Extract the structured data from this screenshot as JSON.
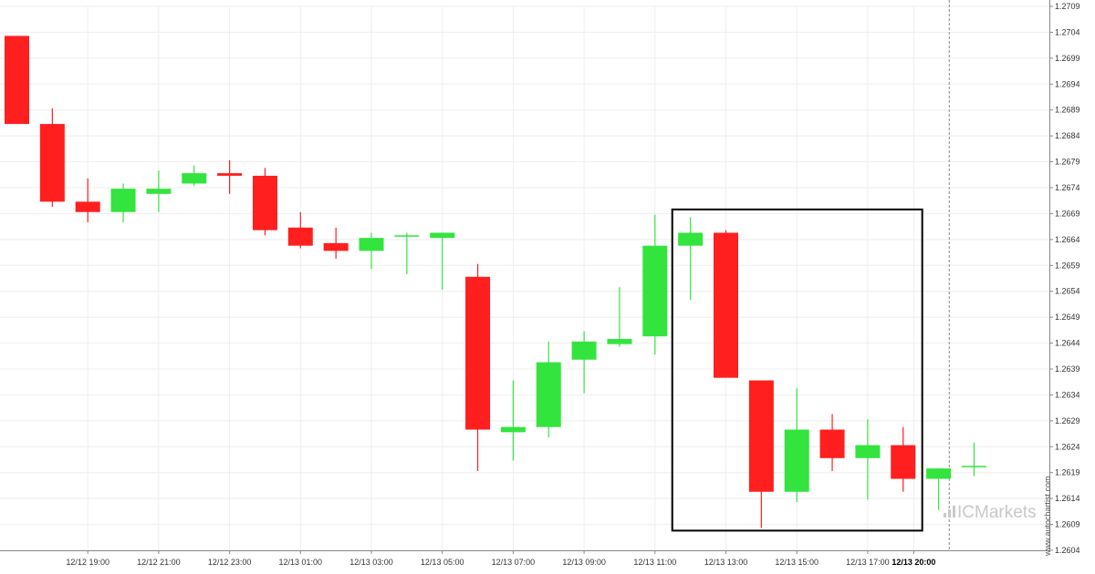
{
  "chart_data": {
    "type": "candlestick",
    "title": "",
    "xlabel": "",
    "ylabel": "",
    "ylim": [
      1.2604,
      1.2709
    ],
    "y_ticks": [
      "1.2709",
      "1.2704",
      "1.2699",
      "1.2694",
      "1.2689",
      "1.2684",
      "1.2679",
      "1.2674",
      "1.2669",
      "1.2664",
      "1.2659",
      "1.2654",
      "1.2649",
      "1.2644",
      "1.2639",
      "1.2634",
      "1.2629",
      "1.2624",
      "1.2619",
      "1.2614",
      "1.2609",
      "1.2604"
    ],
    "x_ticks": [
      {
        "label": "12/12 19:00",
        "index": 2,
        "bold": false
      },
      {
        "label": "12/12 21:00",
        "index": 4,
        "bold": false
      },
      {
        "label": "12/12 23:00",
        "index": 6,
        "bold": false
      },
      {
        "label": "12/13 01:00",
        "index": 8,
        "bold": false
      },
      {
        "label": "12/13 03:00",
        "index": 10,
        "bold": false
      },
      {
        "label": "12/13 05:00",
        "index": 12,
        "bold": false
      },
      {
        "label": "12/13 07:00",
        "index": 14,
        "bold": false
      },
      {
        "label": "12/13 09:00",
        "index": 16,
        "bold": false
      },
      {
        "label": "12/13 11:00",
        "index": 18,
        "bold": false
      },
      {
        "label": "12/13 13:00",
        "index": 20,
        "bold": false
      },
      {
        "label": "12/13 15:00",
        "index": 22,
        "bold": false
      },
      {
        "label": "12/13 17:00",
        "index": 24,
        "bold": false
      },
      {
        "label": "12/13 20:00",
        "index": 25.3,
        "bold": true
      }
    ],
    "candles": [
      {
        "o": 1.27033,
        "h": 1.27033,
        "l": 1.26863,
        "c": 1.26863
      },
      {
        "o": 1.26863,
        "h": 1.26893,
        "l": 1.26703,
        "c": 1.26713
      },
      {
        "o": 1.26713,
        "h": 1.26758,
        "l": 1.26673,
        "c": 1.26693
      },
      {
        "o": 1.26693,
        "h": 1.26748,
        "l": 1.26673,
        "c": 1.26738
      },
      {
        "o": 1.26728,
        "h": 1.26773,
        "l": 1.26693,
        "c": 1.26738
      },
      {
        "o": 1.26748,
        "h": 1.26783,
        "l": 1.26743,
        "c": 1.26768
      },
      {
        "o": 1.26768,
        "h": 1.26793,
        "l": 1.26728,
        "c": 1.26763
      },
      {
        "o": 1.26763,
        "h": 1.26778,
        "l": 1.26648,
        "c": 1.26658
      },
      {
        "o": 1.26663,
        "h": 1.26693,
        "l": 1.26623,
        "c": 1.26628
      },
      {
        "o": 1.26633,
        "h": 1.26663,
        "l": 1.26603,
        "c": 1.26618
      },
      {
        "o": 1.26618,
        "h": 1.26653,
        "l": 1.26583,
        "c": 1.26643
      },
      {
        "o": 1.26648,
        "h": 1.26653,
        "l": 1.26573,
        "c": 1.26648
      },
      {
        "o": 1.26643,
        "h": 1.26653,
        "l": 1.26543,
        "c": 1.26653
      },
      {
        "o": 1.26568,
        "h": 1.26593,
        "l": 1.26193,
        "c": 1.26273
      },
      {
        "o": 1.26268,
        "h": 1.26368,
        "l": 1.26213,
        "c": 1.26278
      },
      {
        "o": 1.26278,
        "h": 1.26443,
        "l": 1.26258,
        "c": 1.26403
      },
      {
        "o": 1.26408,
        "h": 1.26463,
        "l": 1.26343,
        "c": 1.26443
      },
      {
        "o": 1.26438,
        "h": 1.26548,
        "l": 1.26433,
        "c": 1.26448
      },
      {
        "o": 1.26453,
        "h": 1.26688,
        "l": 1.26418,
        "c": 1.26628
      },
      {
        "o": 1.26628,
        "h": 1.26683,
        "l": 1.26523,
        "c": 1.26653
      },
      {
        "o": 1.26653,
        "h": 1.26658,
        "l": 1.26373,
        "c": 1.26373
      },
      {
        "o": 1.26368,
        "h": 1.26368,
        "l": 1.26083,
        "c": 1.26153
      },
      {
        "o": 1.26153,
        "h": 1.26353,
        "l": 1.26133,
        "c": 1.26273
      },
      {
        "o": 1.26273,
        "h": 1.26303,
        "l": 1.26193,
        "c": 1.26218
      },
      {
        "o": 1.26218,
        "h": 1.26293,
        "l": 1.26138,
        "c": 1.26243
      },
      {
        "o": 1.26243,
        "h": 1.26278,
        "l": 1.26153,
        "c": 1.26178
      },
      {
        "o": 1.26178,
        "h": 1.26198,
        "l": 1.26118,
        "c": 1.26198
      },
      {
        "o": 1.26203,
        "h": 1.26248,
        "l": 1.26183,
        "c": 1.26203
      }
    ],
    "highlight_box": {
      "from_index": 19,
      "to_index": 26,
      "high": 1.26698,
      "low": 1.26078
    },
    "current_time_index": 26.3,
    "grid": true,
    "colors": {
      "up": "#33e43f",
      "down": "#ff1f1f",
      "grid": "#eeeeee",
      "axis": "#888888",
      "box": "#000000",
      "marker": "#888888"
    }
  },
  "watermark": {
    "brand": "ICMarkets",
    "site": "www.autochartist.com"
  }
}
